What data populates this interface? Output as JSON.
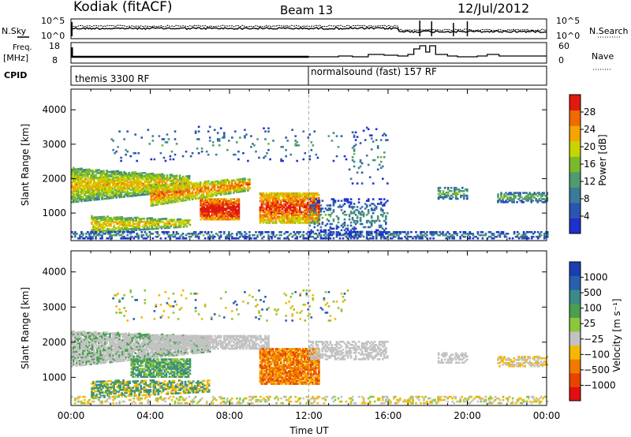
{
  "header": {
    "title": "Kodiak (fitACF)",
    "beam": "Beam 13",
    "date": "12/Jul/2012"
  },
  "noise_panel": {
    "left_label": "N.Sky",
    "right_label": "N.Search",
    "left_ticks": [
      "10^5",
      "10^0"
    ],
    "right_ticks": [
      "10^5",
      "10^0"
    ]
  },
  "freq_panel": {
    "left_label_line1": "Freq.",
    "left_label_line2": "[MHz]",
    "right_label": "Nave",
    "left_ticks": [
      "18",
      "8"
    ],
    "right_ticks": [
      "60",
      "0"
    ]
  },
  "cpid_panel": {
    "label": "CPID",
    "segments": [
      {
        "start": "00:00",
        "text": "themis 3300 RF"
      },
      {
        "start": "12:00",
        "text": "normalsound (fast) 157 RF"
      }
    ]
  },
  "colors": {
    "power": [
      "#1f2fd0",
      "#2a55b0",
      "#3a7a9a",
      "#4f9a70",
      "#7aba2a",
      "#c8d400",
      "#f5a300",
      "#f06a00",
      "#e01a10"
    ],
    "velocity": [
      "#1a3fb0",
      "#2a5fb0",
      "#3a8a8a",
      "#4aa050",
      "#8cc63a",
      "#c2c2c2",
      "#f5b800",
      "#f07a00",
      "#e84400",
      "#e01010"
    ],
    "ground_scatter": "#c2c2c2"
  },
  "chart_data": [
    {
      "type": "heatmap",
      "name": "power",
      "xlabel": "",
      "ylabel": "Slant Range [km]",
      "xlim": [
        "00:00",
        "24:00"
      ],
      "ylim": [
        200,
        4600
      ],
      "yticks": [
        1000,
        2000,
        3000,
        4000
      ],
      "colorbar": {
        "label": "Power [dB]",
        "ticks": [
          "4",
          "8",
          "12",
          "16",
          "20",
          "24",
          "28"
        ]
      },
      "features": [
        {
          "time_start": "00:00",
          "time_end": "05:00",
          "range_start": 1100,
          "range_end": 2400,
          "level": "high"
        },
        {
          "time_start": "05:30",
          "time_end": "12:00",
          "range_start": 700,
          "range_end": 1600,
          "level": "high"
        }
      ]
    },
    {
      "type": "heatmap",
      "name": "velocity",
      "xlabel": "Time UT",
      "ylabel": "Slant Range [km]",
      "xlim": [
        "00:00",
        "24:00"
      ],
      "ylim": [
        200,
        4600
      ],
      "xticks": [
        "00:00",
        "04:00",
        "08:00",
        "12:00",
        "16:00",
        "20:00",
        "00:00"
      ],
      "yticks": [
        1000,
        2000,
        3000,
        4000
      ],
      "colorbar": {
        "label": "Velocity [m s⁻¹]",
        "ticks": [
          "1000",
          "500",
          "100",
          "25",
          "−25",
          "−100",
          "−500",
          "−1000"
        ]
      },
      "features": [
        {
          "time_start": "00:00",
          "time_end": "06:00",
          "range_start": 1200,
          "range_end": 2500,
          "velocity": "ground scatter"
        },
        {
          "time_start": "09:30",
          "time_end": "12:00",
          "range_start": 800,
          "range_end": 1800,
          "velocity": "-100 to -500"
        }
      ]
    }
  ]
}
